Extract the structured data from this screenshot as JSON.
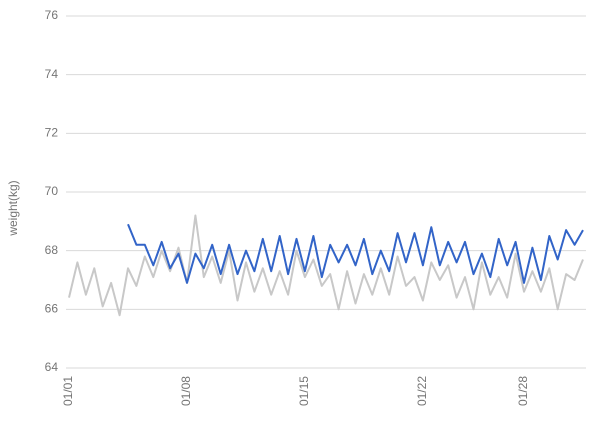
{
  "chart_data": {
    "type": "line",
    "y_label": "weight(kg)",
    "categories": [
      "01/01",
      null,
      null,
      null,
      null,
      null,
      null,
      null,
      null,
      null,
      null,
      null,
      null,
      null,
      "01/08",
      null,
      null,
      null,
      null,
      null,
      null,
      null,
      null,
      null,
      null,
      null,
      null,
      null,
      "01/15",
      null,
      null,
      null,
      null,
      null,
      null,
      null,
      null,
      null,
      null,
      null,
      null,
      null,
      "01/22",
      null,
      null,
      null,
      null,
      null,
      null,
      null,
      null,
      null,
      null,
      null,
      "01/28",
      null,
      null,
      null,
      null,
      null,
      null,
      null
    ],
    "series": [
      {
        "color": "#c8c8c8",
        "values": [
          66.4,
          67.6,
          66.5,
          67.4,
          66.1,
          66.9,
          65.8,
          67.4,
          66.8,
          67.8,
          67.1,
          68.0,
          67.3,
          68.1,
          66.9,
          69.2,
          67.1,
          67.8,
          66.9,
          68.0,
          66.3,
          67.6,
          66.6,
          67.4,
          66.5,
          67.3,
          66.5,
          68.0,
          67.1,
          67.7,
          66.8,
          67.2,
          66.0,
          67.3,
          66.2,
          67.2,
          66.5,
          67.4,
          66.5,
          67.8,
          66.8,
          67.1,
          66.3,
          67.6,
          67.0,
          67.5,
          66.4,
          67.1,
          66.0,
          67.6,
          66.5,
          67.1,
          66.4,
          67.9,
          66.6,
          67.3,
          66.6,
          67.4,
          66.0,
          67.2,
          67.0,
          67.7
        ]
      },
      {
        "color": "#3264c8",
        "values": [
          null,
          null,
          null,
          null,
          null,
          null,
          null,
          68.9,
          68.2,
          68.2,
          67.5,
          68.3,
          67.4,
          67.9,
          66.9,
          67.9,
          67.4,
          68.2,
          67.2,
          68.2,
          67.2,
          68.0,
          67.3,
          68.4,
          67.3,
          68.5,
          67.2,
          68.4,
          67.3,
          68.5,
          67.1,
          68.2,
          67.6,
          68.2,
          67.5,
          68.4,
          67.2,
          68.0,
          67.3,
          68.6,
          67.6,
          68.6,
          67.5,
          68.8,
          67.5,
          68.3,
          67.6,
          68.3,
          67.2,
          67.9,
          67.1,
          68.4,
          67.5,
          68.3,
          66.9,
          68.1,
          67.0,
          68.5,
          67.7,
          68.7,
          68.2,
          68.7
        ]
      }
    ],
    "ylim": [
      64,
      76
    ],
    "yticks": [
      64,
      66,
      68,
      70,
      72,
      74,
      76
    ],
    "grid": true
  }
}
